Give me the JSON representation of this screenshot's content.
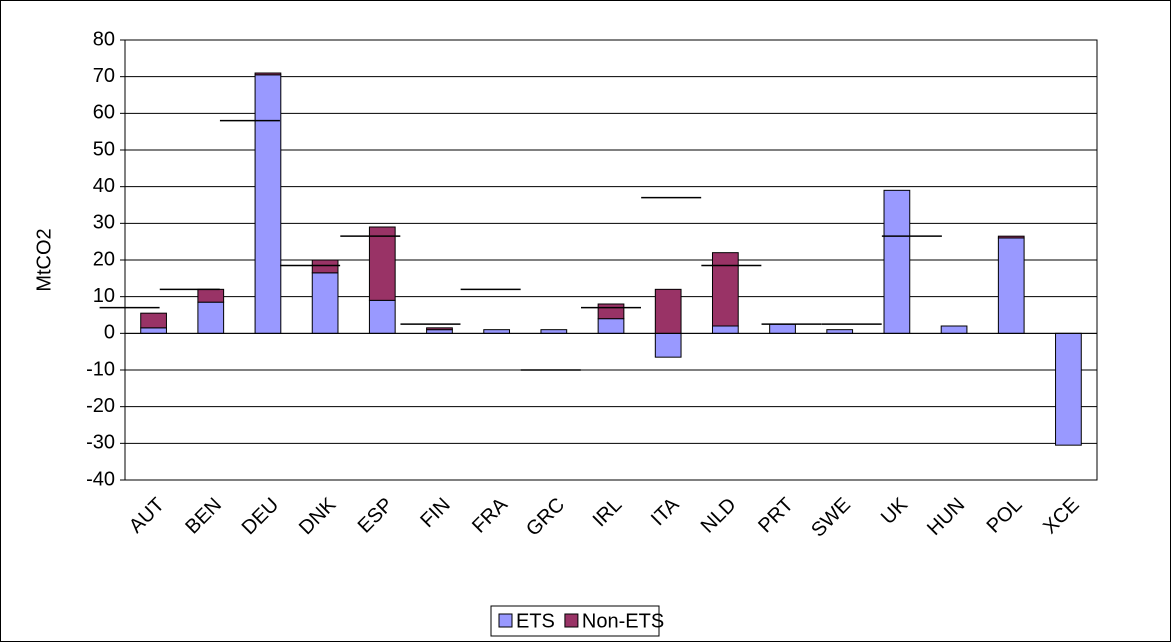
{
  "chart_data": {
    "type": "stacked-bar",
    "y_label": "MtCO2",
    "categories": [
      "AUT",
      "BEN",
      "DEU",
      "DNK",
      "ESP",
      "FIN",
      "FRA",
      "GRC",
      "IRL",
      "ITA",
      "NLD",
      "PRT",
      "SWE",
      "UK",
      "HUN",
      "POL",
      "XCE"
    ],
    "series": [
      {
        "name": "ETS",
        "color": "#9999ff",
        "values": [
          1.5,
          8.5,
          70.5,
          16.5,
          9,
          1,
          1,
          1,
          4,
          -6.5,
          2,
          2.5,
          1,
          39,
          2,
          26,
          -30.5
        ]
      },
      {
        "name": "Non-ETS",
        "color": "#993366",
        "values": [
          4,
          3.5,
          0.5,
          3.5,
          20,
          0.5,
          0,
          0,
          4,
          12,
          20,
          0,
          0,
          0,
          0,
          0.5,
          0
        ]
      }
    ],
    "targets": [
      7,
      12,
      58,
      18.5,
      26.5,
      2.5,
      12,
      -10,
      7,
      37,
      18.5,
      2.5,
      2.5,
      26.5,
      null,
      null,
      null
    ],
    "target_color": "#000000",
    "ylim": [
      -40,
      80
    ],
    "yticks": [
      -40,
      -30,
      -20,
      -10,
      0,
      10,
      20,
      30,
      40,
      50,
      60,
      70,
      80
    ],
    "grid": true,
    "legend": "bottom"
  }
}
